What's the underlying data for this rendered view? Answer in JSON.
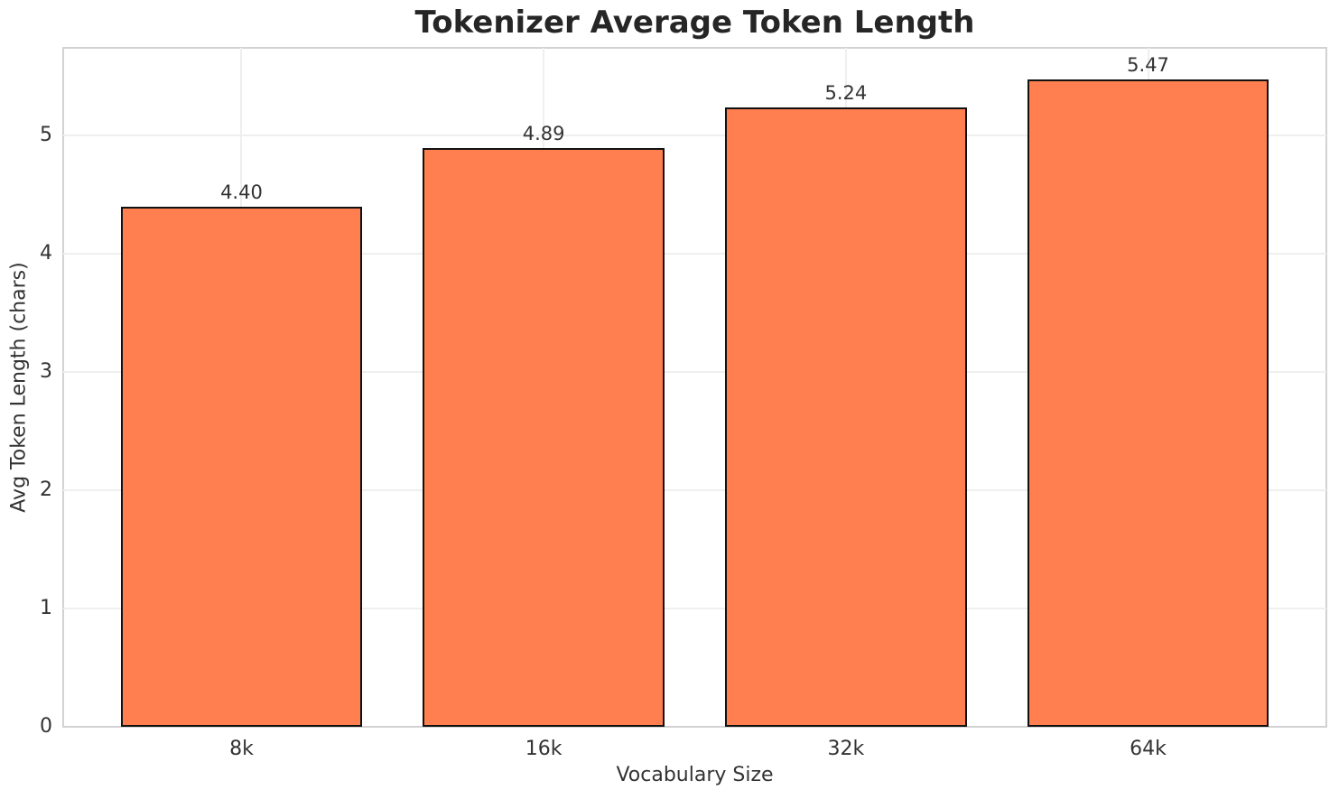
{
  "chart_data": {
    "type": "bar",
    "title": "Tokenizer Average Token Length",
    "xlabel": "Vocabulary Size",
    "ylabel": "Avg Token Length (chars)",
    "categories": [
      "8k",
      "16k",
      "32k",
      "64k"
    ],
    "values": [
      4.4,
      4.89,
      5.24,
      5.47
    ],
    "bar_labels": [
      "4.40",
      "4.89",
      "5.24",
      "5.47"
    ],
    "ylim": [
      0,
      5.74
    ],
    "yticks": [
      0,
      1,
      2,
      3,
      4,
      5
    ],
    "ytick_labels": [
      "0",
      "1",
      "2",
      "3",
      "4",
      "5"
    ],
    "grid": true,
    "legend": null,
    "colors": {
      "bar_fill": "#FF7F50",
      "bar_edge": "#111111",
      "grid": "#efefef",
      "spine": "#d2d2d2",
      "tick_text": "#333333",
      "title_text": "#262626"
    }
  }
}
